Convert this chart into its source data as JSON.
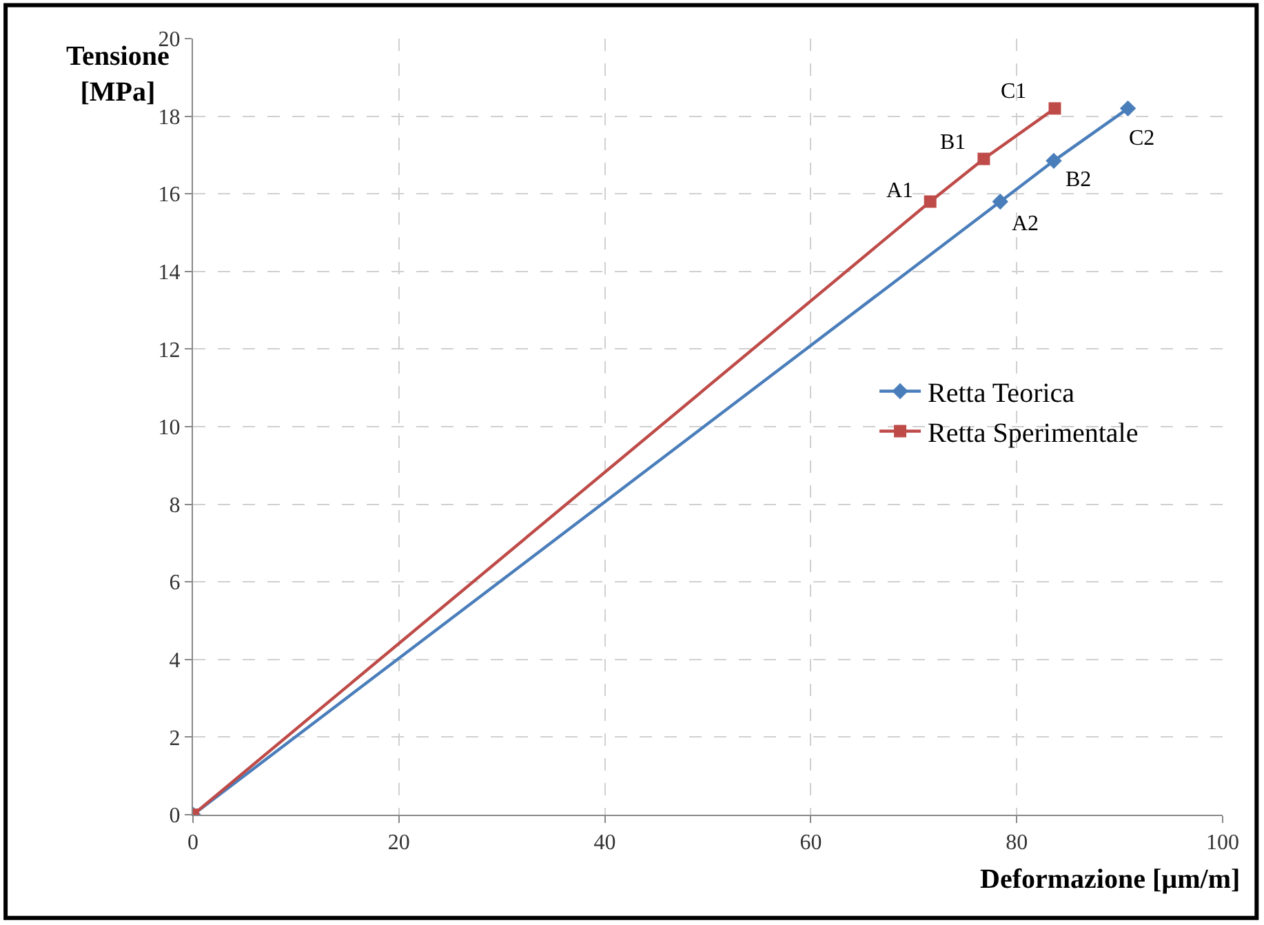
{
  "chart_data": {
    "type": "line",
    "xlabel": "Deformazione [µm/m]",
    "ylabel": "Tensione [MPa]",
    "xlim": [
      0,
      100
    ],
    "xticks": [
      0,
      20,
      40,
      60,
      80,
      100
    ],
    "ylim": [
      0,
      20
    ],
    "yticks": [
      0,
      2,
      4,
      6,
      8,
      10,
      12,
      14,
      16,
      18,
      20
    ],
    "grid": true,
    "legend": "right",
    "line_style": "solid",
    "series": [
      {
        "name": "Retta Teorica",
        "color": "#4a7ebb",
        "marker": "diamond",
        "x": [
          0,
          78.4,
          83.6,
          90.8
        ],
        "values": [
          0,
          15.8,
          16.85,
          18.2
        ]
      },
      {
        "name": "Retta Sperimentale",
        "color": "#be4b48",
        "marker": "square",
        "x": [
          0,
          71.6,
          76.8,
          83.7
        ],
        "values": [
          0,
          15.8,
          16.9,
          18.2
        ]
      }
    ],
    "annotations": [
      {
        "text": "A1",
        "x": 71.6,
        "y": 15.8
      },
      {
        "text": "B1",
        "x": 76.8,
        "y": 16.9
      },
      {
        "text": "C1",
        "x": 83.7,
        "y": 18.2
      },
      {
        "text": "A2",
        "x": 78.4,
        "y": 15.8
      },
      {
        "text": "B2",
        "x": 83.6,
        "y": 16.85
      },
      {
        "text": "C2",
        "x": 90.8,
        "y": 18.2
      }
    ]
  }
}
